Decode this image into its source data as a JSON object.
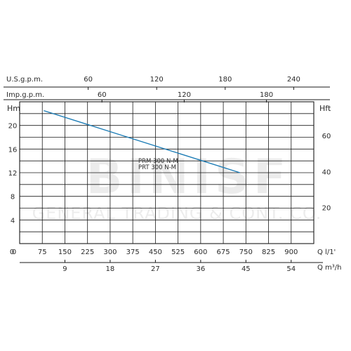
{
  "chart_data": {
    "type": "line",
    "title": "",
    "grid": true,
    "x": [
      80,
      730
    ],
    "series": [
      {
        "name": "PRM 300 N-M",
        "values": [
          22.5,
          12.0
        ]
      },
      {
        "name": "PRT 300 N-M",
        "values": [
          22.5,
          12.0
        ]
      }
    ],
    "curve_labels": [
      "PRM 300 N-M",
      "PRT 300 N-M"
    ],
    "line_color": "#1a7bb5",
    "x_axis_bottom": {
      "unit": "Q l/1'",
      "ticks": [
        "0",
        "75",
        "150",
        "225",
        "300",
        "375",
        "450",
        "525",
        "600",
        "675",
        "750",
        "825",
        "900"
      ],
      "range": [
        0,
        975
      ]
    },
    "x_axis_m3h": {
      "unit": "Q m³/h",
      "ticks": [
        "9",
        "18",
        "27",
        "36",
        "45",
        "54"
      ],
      "range": [
        0,
        58.5
      ]
    },
    "x_axis_usgpm": {
      "unit": "U.S.g.p.m.",
      "ticks": [
        "60",
        "120",
        "180",
        "240"
      ],
      "range": [
        0,
        257.6
      ]
    },
    "x_axis_impgpm": {
      "unit": "Imp.g.p.m.",
      "ticks": [
        "60",
        "120",
        "180"
      ],
      "range": [
        0,
        214.5
      ]
    },
    "y_axis_left": {
      "unit": "Hm",
      "ticks": [
        "0",
        "4",
        "8",
        "12",
        "16",
        "20"
      ],
      "range": [
        0,
        24
      ]
    },
    "y_axis_right": {
      "unit": "Hft",
      "ticks": [
        "20",
        "40",
        "60"
      ],
      "range": [
        0,
        78.7
      ]
    }
  },
  "watermark": {
    "line1": "BINISF",
    "line2": "GENERAL TRADING & CONT. CO."
  }
}
